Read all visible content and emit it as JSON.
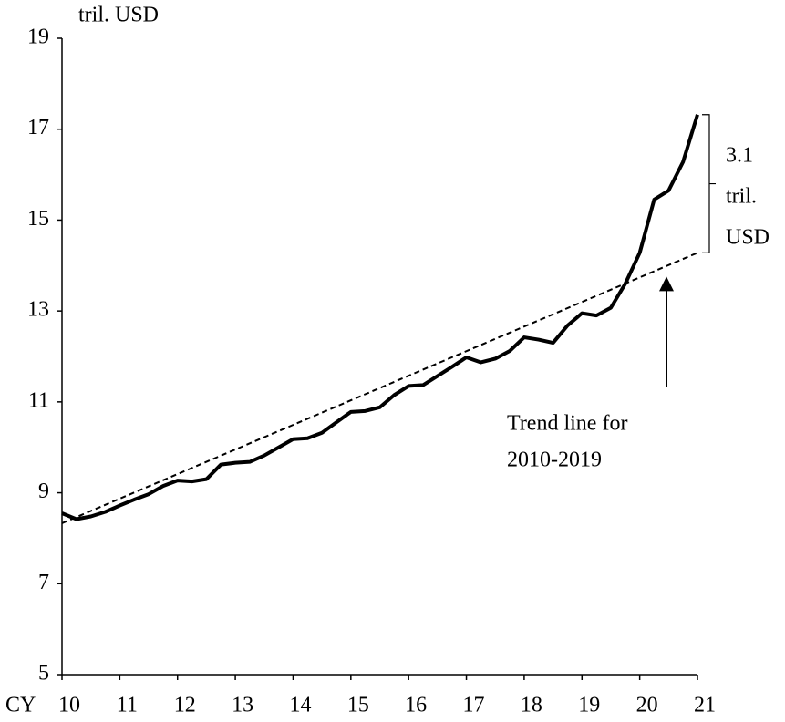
{
  "chart_data": {
    "type": "line",
    "y_label": "tril. USD",
    "x_prefix": "CY",
    "x": [
      2010,
      2010.25,
      2010.5,
      2010.75,
      2011,
      2011.25,
      2011.5,
      2011.75,
      2012,
      2012.25,
      2012.5,
      2012.75,
      2013,
      2013.25,
      2013.5,
      2013.75,
      2014,
      2014.25,
      2014.5,
      2014.75,
      2015,
      2015.25,
      2015.5,
      2015.75,
      2016,
      2016.25,
      2016.5,
      2016.75,
      2017,
      2017.25,
      2017.5,
      2017.75,
      2018,
      2018.25,
      2018.5,
      2018.75,
      2019,
      2019.25,
      2019.5,
      2019.75,
      2020,
      2020.25,
      2020.5,
      2020.75,
      2021
    ],
    "series": [
      {
        "color": "#000000",
        "dash": false,
        "values": [
          8.55,
          8.42,
          8.48,
          8.58,
          8.72,
          8.85,
          8.97,
          9.15,
          9.27,
          9.25,
          9.3,
          9.62,
          9.66,
          9.68,
          9.82,
          10.0,
          10.18,
          10.2,
          10.32,
          10.55,
          10.78,
          10.8,
          10.88,
          11.15,
          11.35,
          11.37,
          11.57,
          11.77,
          11.98,
          11.87,
          11.95,
          12.12,
          12.42,
          12.37,
          12.3,
          12.68,
          12.95,
          12.9,
          13.07,
          13.6,
          14.28,
          15.45,
          15.65,
          16.28,
          17.32
        ]
      },
      {
        "color": "#000000",
        "dash": true,
        "x": [
          2010,
          2021
        ],
        "values": [
          8.33,
          14.28
        ]
      }
    ],
    "xlim": [
      2010,
      2021
    ],
    "xticks": [
      {
        "value": 2010,
        "label": "10"
      },
      {
        "value": 2011,
        "label": "11"
      },
      {
        "value": 2012,
        "label": "12"
      },
      {
        "value": 2013,
        "label": "13"
      },
      {
        "value": 2014,
        "label": "14"
      },
      {
        "value": 2015,
        "label": "15"
      },
      {
        "value": 2016,
        "label": "16"
      },
      {
        "value": 2017,
        "label": "17"
      },
      {
        "value": 2018,
        "label": "18"
      },
      {
        "value": 2019,
        "label": "19"
      },
      {
        "value": 2020,
        "label": "20"
      },
      {
        "value": 2021,
        "label": "21"
      }
    ],
    "ylim": [
      5,
      19
    ],
    "yticks": [
      5,
      7,
      9,
      11,
      13,
      15,
      17,
      19
    ],
    "gap_annotation": [
      "3.1",
      "tril.",
      "USD"
    ],
    "trend_annotation": [
      "Trend line for",
      "2010-2019"
    ]
  }
}
